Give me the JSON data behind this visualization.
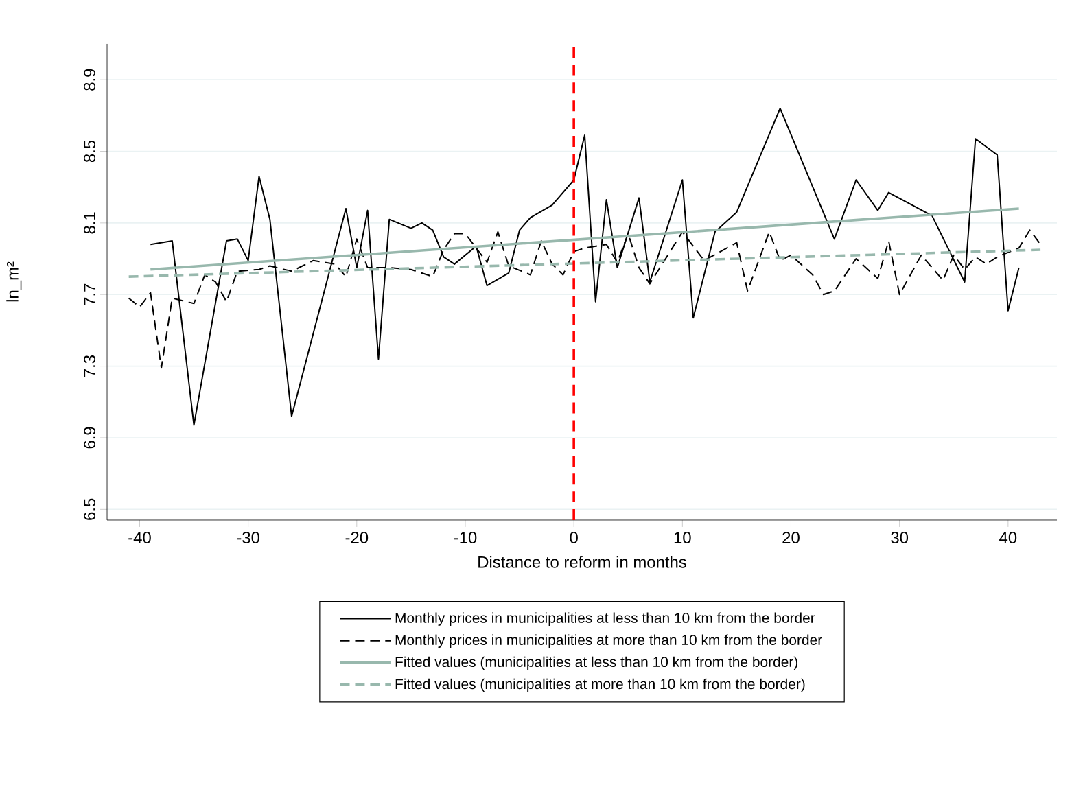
{
  "chart_data": {
    "type": "line",
    "xlabel": "Distance to reform in months",
    "ylabel": "ln_m²",
    "xlim": [
      -43,
      44.5
    ],
    "ylim": [
      6.44,
      9.1
    ],
    "xticks": [
      -40,
      -30,
      -20,
      -10,
      0,
      10,
      20,
      30,
      40
    ],
    "yticks": [
      6.5,
      6.9,
      7.3,
      7.7,
      8.1,
      8.5,
      8.9
    ],
    "grid": "y",
    "legend": "bottom",
    "marker": "none",
    "ref_lines": [
      {
        "axis": "x",
        "value": 0,
        "color": "#ff0000",
        "line_style": "dashed"
      }
    ],
    "series": [
      {
        "name": "Monthly prices in municipalities at less than 10 km from the border",
        "color": "#000000",
        "line_style": "solid",
        "x": [
          -39,
          -37,
          -35,
          -32,
          -31,
          -30,
          -29,
          -28,
          -26,
          -21,
          -20,
          -19,
          -18,
          -17,
          -15,
          -14,
          -13,
          -12,
          -11,
          -9,
          -8,
          -6,
          -5,
          -4,
          -2,
          0,
          1,
          2,
          3,
          4,
          6,
          7,
          10,
          11,
          13,
          15,
          19,
          24,
          26,
          28,
          29,
          33,
          36,
          37,
          39,
          40,
          41
        ],
        "values": [
          7.98,
          8.0,
          6.97,
          8.0,
          8.01,
          7.89,
          8.36,
          8.12,
          7.02,
          8.18,
          7.85,
          8.17,
          7.34,
          8.12,
          8.07,
          8.1,
          8.06,
          7.91,
          7.87,
          7.97,
          7.75,
          7.82,
          8.06,
          8.13,
          8.2,
          8.34,
          8.59,
          7.66,
          8.23,
          7.85,
          8.24,
          7.77,
          8.34,
          7.57,
          8.05,
          8.16,
          8.74,
          8.01,
          8.34,
          8.17,
          8.27,
          8.14,
          7.77,
          8.57,
          8.48,
          7.61,
          7.85
        ]
      },
      {
        "name": "Monthly prices in municipalities at more than 10 km from the border",
        "color": "#000000",
        "line_style": "dashed",
        "x": [
          -41,
          -40,
          -39,
          -38,
          -37,
          -35,
          -34,
          -33,
          -32,
          -31,
          -29,
          -28,
          -26,
          -24,
          -22,
          -21,
          -20,
          -19,
          -17,
          -15,
          -13,
          -12,
          -11,
          -10,
          -9,
          -8,
          -7,
          -6,
          -4,
          -3,
          -2,
          -1,
          0,
          1,
          3,
          4,
          5,
          6,
          7,
          10,
          12,
          15,
          16,
          18,
          19,
          20,
          22,
          23,
          24,
          26,
          28,
          29,
          30,
          32,
          34,
          35,
          36,
          37,
          38,
          39,
          41,
          42,
          43
        ],
        "values": [
          7.68,
          7.63,
          7.71,
          7.29,
          7.68,
          7.65,
          7.81,
          7.77,
          7.66,
          7.83,
          7.84,
          7.86,
          7.83,
          7.89,
          7.87,
          7.8,
          8.01,
          7.85,
          7.85,
          7.84,
          7.8,
          7.95,
          8.04,
          8.04,
          7.96,
          7.88,
          8.05,
          7.86,
          7.81,
          8.0,
          7.87,
          7.81,
          7.94,
          7.96,
          7.98,
          7.88,
          8.04,
          7.85,
          7.76,
          8.05,
          7.89,
          7.99,
          7.72,
          8.05,
          7.89,
          7.92,
          7.81,
          7.7,
          7.72,
          7.9,
          7.79,
          8.0,
          7.7,
          7.92,
          7.78,
          7.92,
          7.84,
          7.91,
          7.87,
          7.91,
          7.96,
          8.06,
          7.98
        ]
      },
      {
        "name": "Fitted values (municipalities at less than 10 km from the border)",
        "color": "#98b8ad",
        "line_style": "solid",
        "x": [
          -39,
          41
        ],
        "values": [
          7.84,
          8.18
        ]
      },
      {
        "name": "Fitted values (municipalities at more than 10 km from the border)",
        "color": "#98b8ad",
        "line_style": "dashed",
        "x": [
          -41,
          43
        ],
        "values": [
          7.8,
          7.95
        ]
      }
    ]
  }
}
